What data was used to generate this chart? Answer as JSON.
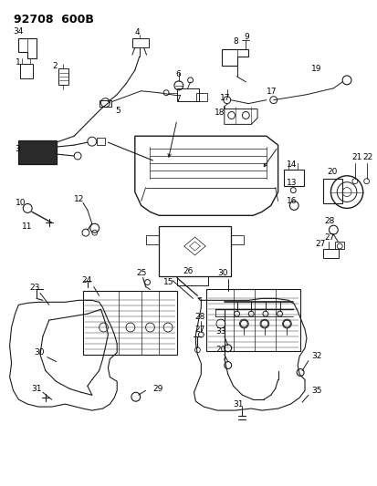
{
  "title": "92708  600B",
  "bg_color": "#ffffff",
  "line_color": "#1a1a1a",
  "text_color": "#000000",
  "fig_width": 4.14,
  "fig_height": 5.33,
  "dpi": 100,
  "title_fontsize": 9,
  "label_fontsize": 6.5,
  "label_fontsize_sm": 5.5
}
